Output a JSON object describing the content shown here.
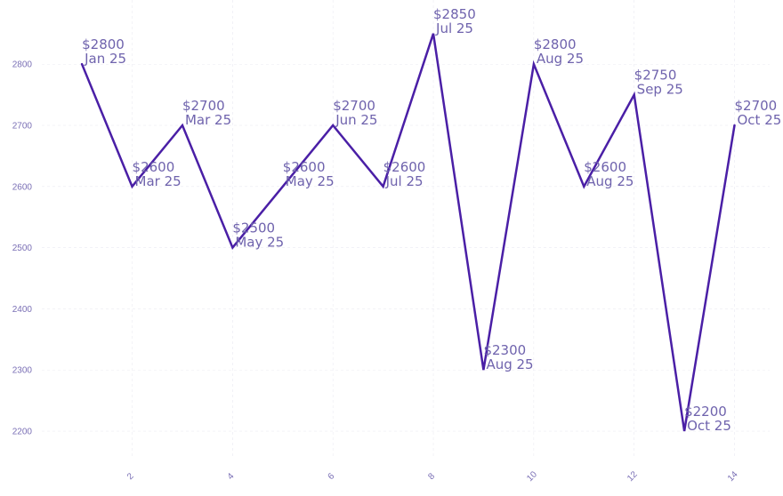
{
  "chart_data": {
    "type": "line",
    "title": "",
    "xlabel": "",
    "ylabel": "",
    "x": [
      1,
      2,
      3,
      4,
      5,
      6,
      7,
      8,
      9,
      10,
      11,
      12,
      13,
      14
    ],
    "series": [
      {
        "values": [
          2800,
          2600,
          2700,
          2500,
          2600,
          2700,
          2600,
          2850,
          2300,
          2800,
          2600,
          2750,
          2200,
          2700
        ],
        "color": "#4a1fa6"
      }
    ],
    "point_labels": [
      {
        "price": "$2800",
        "month": "Jan 25"
      },
      {
        "price": "$2600",
        "month": "Mar 25"
      },
      {
        "price": "$2700",
        "month": "Mar 25"
      },
      {
        "price": "$2500",
        "month": "May 25"
      },
      {
        "price": "$2600",
        "month": "May 25"
      },
      {
        "price": "$2700",
        "month": "Jun 25"
      },
      {
        "price": "$2600",
        "month": "Jul 25"
      },
      {
        "price": "$2850",
        "month": "Jul 25"
      },
      {
        "price": "$2300",
        "month": "Aug 25"
      },
      {
        "price": "$2800",
        "month": "Aug 25"
      },
      {
        "price": "$2600",
        "month": "Aug 25"
      },
      {
        "price": "$2750",
        "month": "Sep 25"
      },
      {
        "price": "$2200",
        "month": "Oct 25"
      },
      {
        "price": "$2700",
        "month": "Oct 25"
      }
    ],
    "x_ticks": [
      2,
      4,
      6,
      8,
      10,
      12,
      14
    ],
    "y_ticks": [
      2200,
      2300,
      2400,
      2500,
      2600,
      2700,
      2800
    ],
    "xlim": [
      0.2,
      14.7
    ],
    "ylim": [
      2155,
      2905
    ],
    "grid": true,
    "legend": "none",
    "colors": {
      "line": "#4a1fa6",
      "labels": "#6f63ad",
      "ticks": "#7a6fb5",
      "grid": "#ebebf2"
    }
  }
}
